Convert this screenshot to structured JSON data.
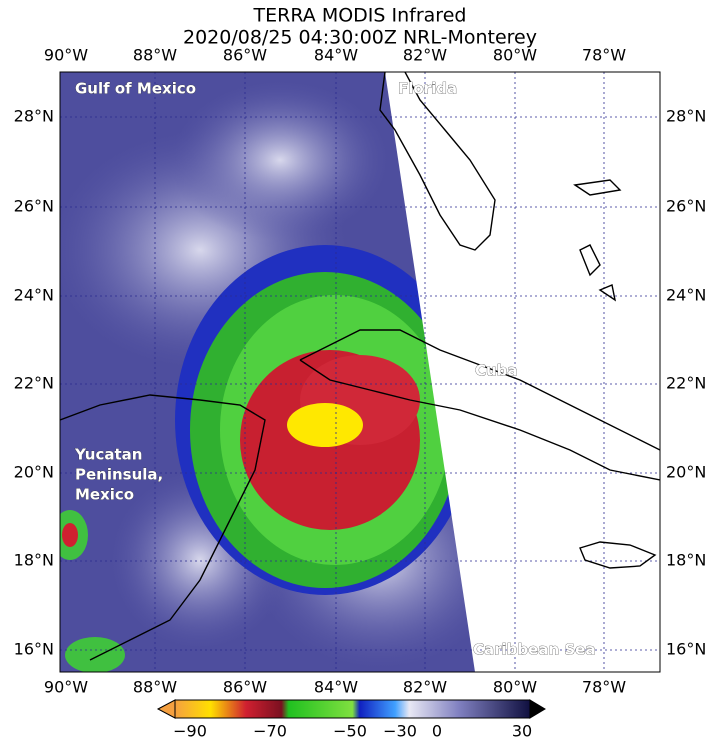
{
  "header": {
    "title": "TERRA MODIS Infrared",
    "subtitle": "2020/08/25 04:30:00Z NRL-Monterey"
  },
  "map": {
    "lon_labels": [
      "90°W",
      "88°W",
      "86°W",
      "84°W",
      "82°W",
      "80°W",
      "78°W"
    ],
    "lat_labels": [
      "28°N",
      "26°N",
      "24°N",
      "22°N",
      "20°N",
      "18°N",
      "16°N"
    ],
    "places": [
      {
        "lines": [
          "Gulf of Mexico"
        ]
      },
      {
        "lines": [
          "Florida"
        ]
      },
      {
        "lines": [
          "Cuba"
        ]
      },
      {
        "lines": [
          "Yucatan",
          "Peninsula,",
          "Mexico"
        ]
      },
      {
        "lines": [
          "Caribbean Sea"
        ]
      }
    ]
  },
  "colorbar": {
    "ticks": [
      "−90",
      "−70",
      "−50",
      "−30",
      "0",
      "30"
    ]
  }
}
